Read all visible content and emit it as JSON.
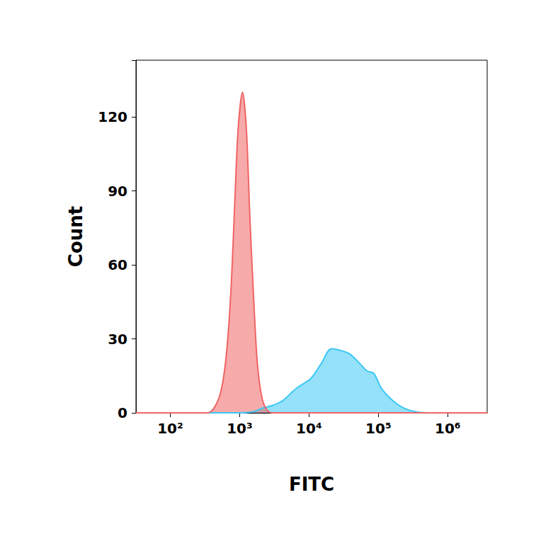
{
  "chart_data": {
    "type": "area",
    "x_label": "FITC",
    "y_label": "Count",
    "log": "x",
    "grid": false,
    "xlim": [
      32,
      3700000
    ],
    "ylim": [
      0,
      143
    ],
    "xticks": [
      {
        "value": 100,
        "label": "10²"
      },
      {
        "value": 1000,
        "label": "10³"
      },
      {
        "value": 10000,
        "label": "10⁴"
      },
      {
        "value": 100000,
        "label": "10⁵"
      },
      {
        "value": 1000000,
        "label": "10⁶"
      }
    ],
    "yticks": [
      0,
      30,
      60,
      90,
      120
    ],
    "series": [
      {
        "color": "#3cc8f4",
        "x": [
          32,
          1000,
          1600,
          2200,
          3000,
          4200,
          5500,
          6600,
          8500,
          10700,
          15000,
          21000,
          27000,
          38000,
          54000,
          68000,
          86000,
          110000,
          160000,
          230000,
          370000,
          600000,
          3700000
        ],
        "values": [
          0,
          0,
          0.5,
          2,
          3,
          5,
          8,
          10,
          12,
          14,
          20,
          26,
          25.5,
          24,
          20,
          17,
          16,
          10,
          5,
          2,
          0.3,
          0,
          0
        ]
      },
      {
        "color": "#f06464",
        "x": [
          32,
          350,
          450,
          550,
          650,
          750,
          850,
          950,
          1100,
          1250,
          1400,
          1600,
          1800,
          2100,
          2500,
          3000,
          3700000
        ],
        "values": [
          0,
          0,
          3,
          10,
          25,
          50,
          85,
          115,
          130,
          115,
          80,
          45,
          20,
          6,
          1,
          0,
          0
        ]
      }
    ]
  }
}
